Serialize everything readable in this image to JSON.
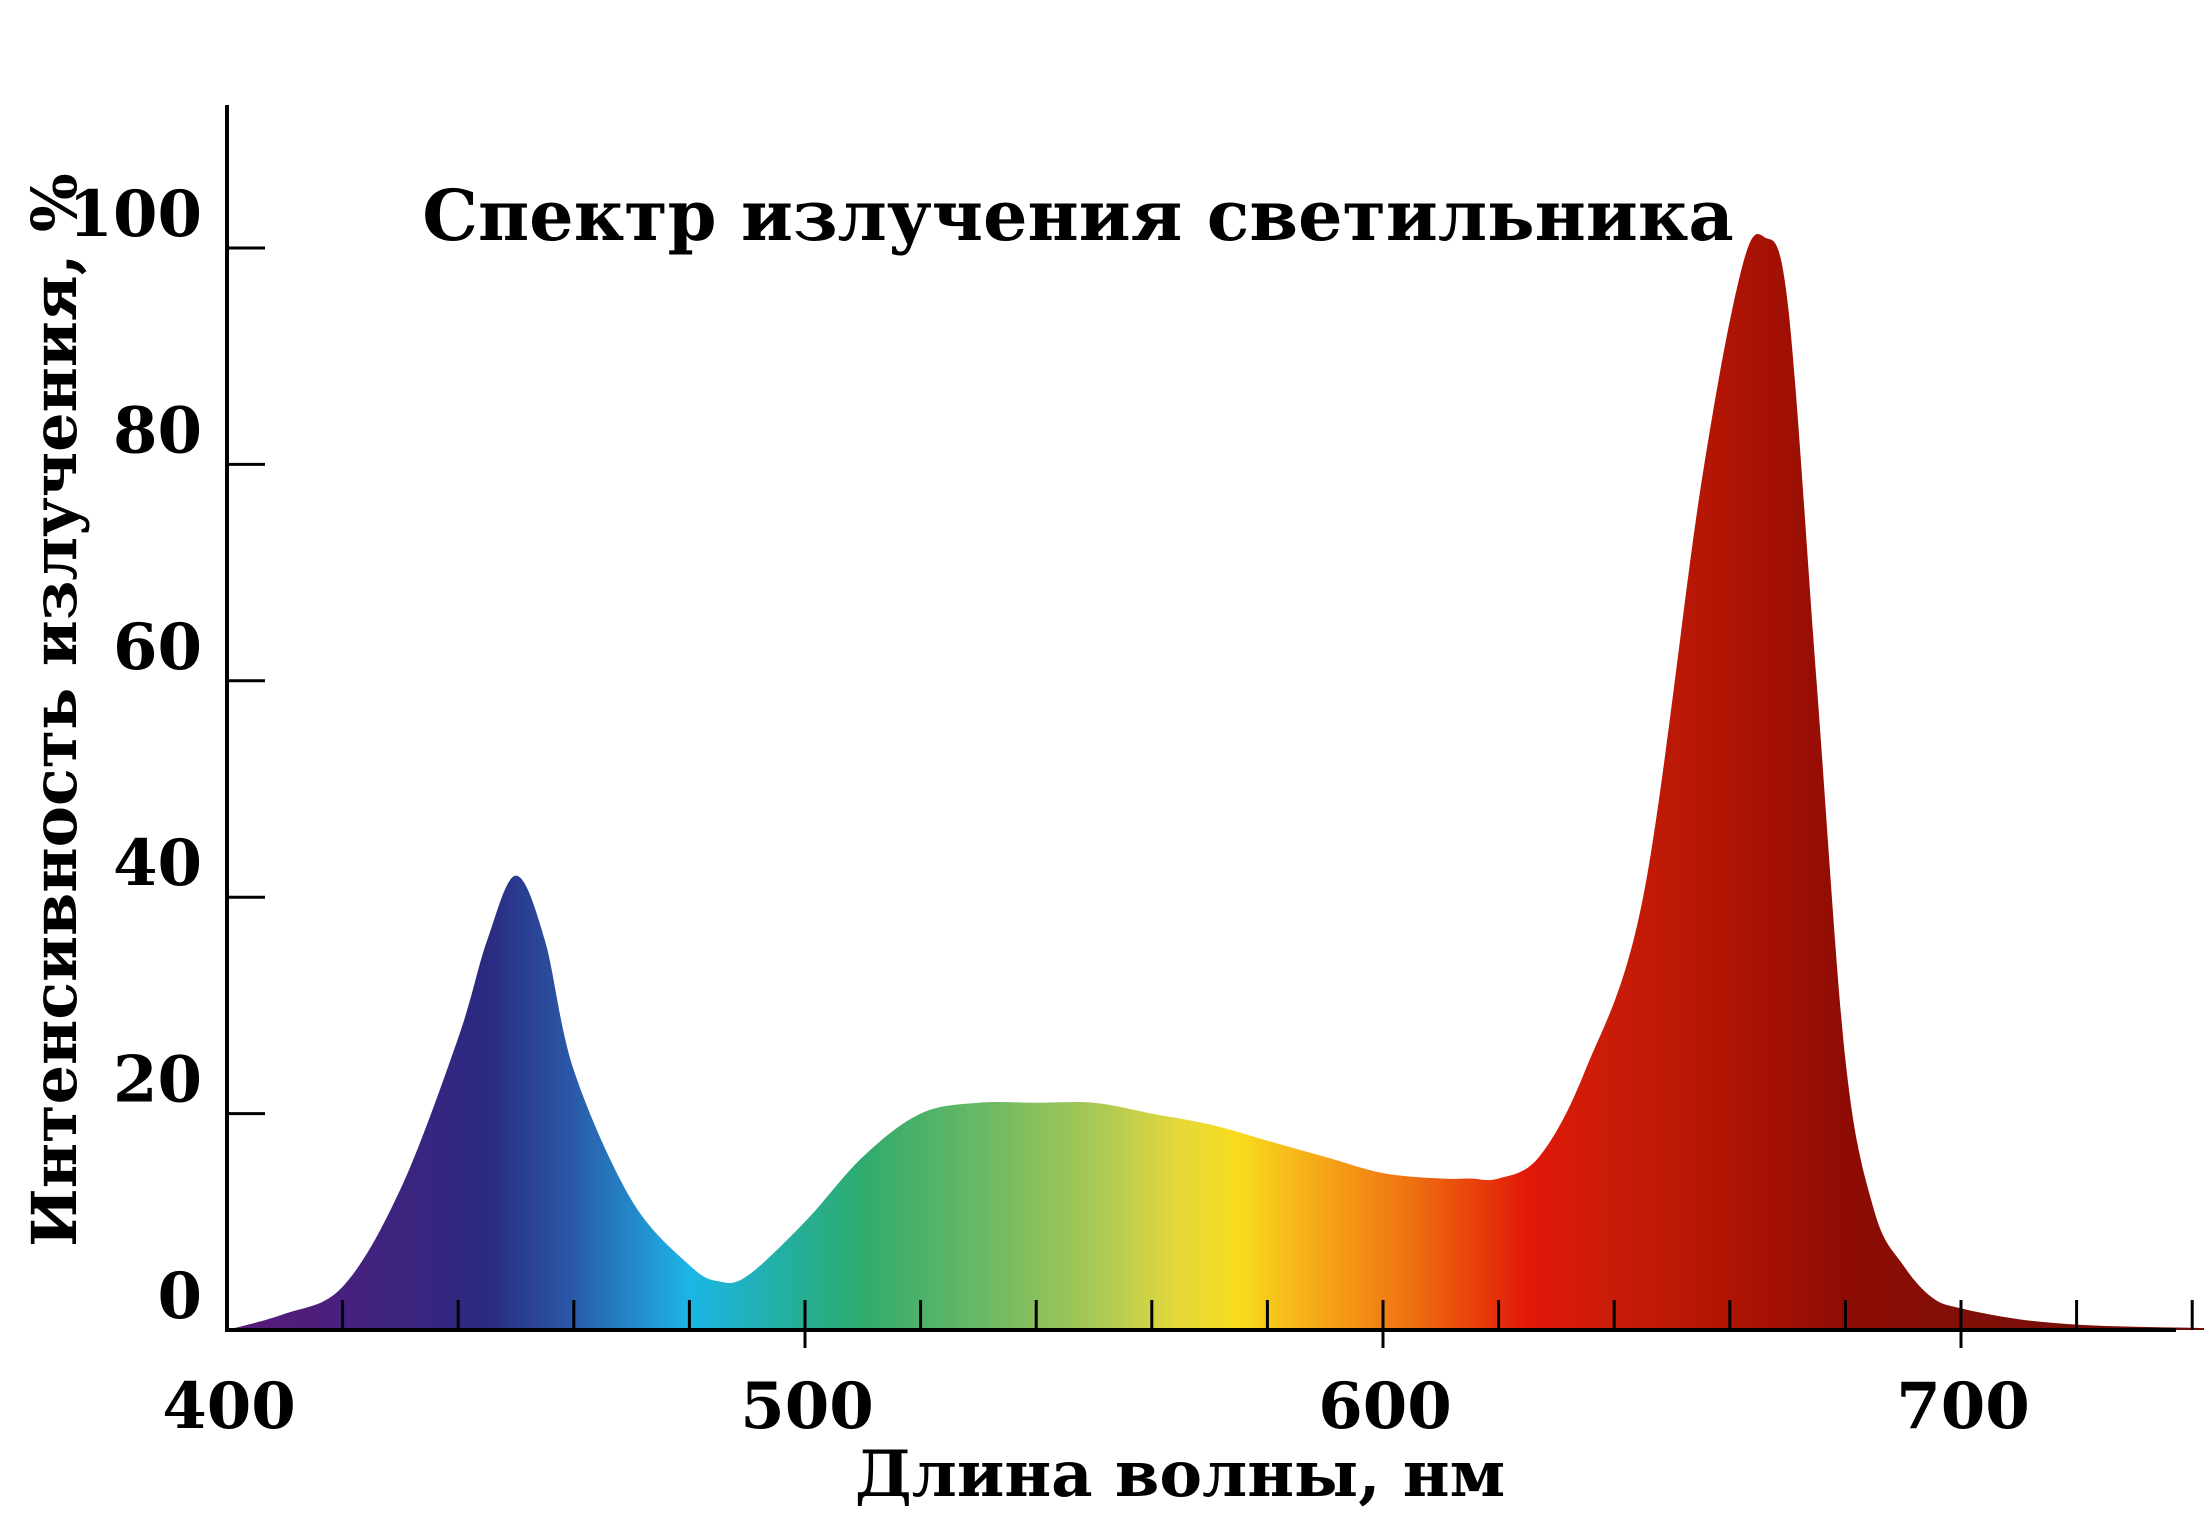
{
  "chart_data": {
    "type": "area",
    "title": "Спектр излучения светильника",
    "xlabel": "Длина волны, нм",
    "ylabel": "Интенсивность излучения, %",
    "xlim": [
      400,
      745
    ],
    "ylim": [
      0,
      112
    ],
    "x_ticks": [
      "400",
      "500",
      "600",
      "700"
    ],
    "y_ticks": [
      "0",
      "20",
      "40",
      "60",
      "80",
      "100"
    ],
    "grid": false,
    "legend": "none",
    "fill": "visible-spectrum-gradient",
    "series": [
      {
        "x": [
          400,
          410,
          420,
          430,
          440,
          445,
          450,
          455,
          460,
          470,
          480,
          485,
          490,
          500,
          510,
          520,
          530,
          540,
          550,
          560,
          570,
          580,
          590,
          600,
          610,
          615,
          620,
          627,
          635,
          645,
          655,
          662,
          666,
          670,
          675,
          680,
          685,
          690,
          695,
          700,
          710,
          720,
          730,
          740,
          745
        ],
        "y": [
          0,
          1.5,
          4,
          13,
          27,
          36,
          42,
          36,
          24,
          12,
          6,
          4.5,
          5,
          10,
          16,
          20,
          21,
          21,
          21,
          20,
          19,
          17.5,
          16,
          14.5,
          14,
          14,
          14,
          16,
          24,
          40,
          78,
          98,
          101,
          95,
          60,
          25,
          11,
          6,
          3,
          2,
          1,
          0.5,
          0.3,
          0.2,
          0.1
        ]
      }
    ],
    "spectrum_colors": [
      {
        "nm": 400,
        "color": "#5a1a78"
      },
      {
        "nm": 420,
        "color": "#48207e"
      },
      {
        "nm": 445,
        "color": "#2a2a80"
      },
      {
        "nm": 460,
        "color": "#2a5aa8"
      },
      {
        "nm": 480,
        "color": "#1cb6e8"
      },
      {
        "nm": 495,
        "color": "#22b0a6"
      },
      {
        "nm": 510,
        "color": "#2fab6e"
      },
      {
        "nm": 530,
        "color": "#68b864"
      },
      {
        "nm": 550,
        "color": "#a8c856"
      },
      {
        "nm": 565,
        "color": "#e6d83a"
      },
      {
        "nm": 575,
        "color": "#f8dc1c"
      },
      {
        "nm": 590,
        "color": "#f6a418"
      },
      {
        "nm": 605,
        "color": "#ee7010"
      },
      {
        "nm": 625,
        "color": "#e21808"
      },
      {
        "nm": 640,
        "color": "#c81c08"
      },
      {
        "nm": 660,
        "color": "#b01404"
      },
      {
        "nm": 680,
        "color": "#8e0c04"
      },
      {
        "nm": 700,
        "color": "#801008"
      },
      {
        "nm": 745,
        "color": "#6e0c06"
      }
    ]
  }
}
